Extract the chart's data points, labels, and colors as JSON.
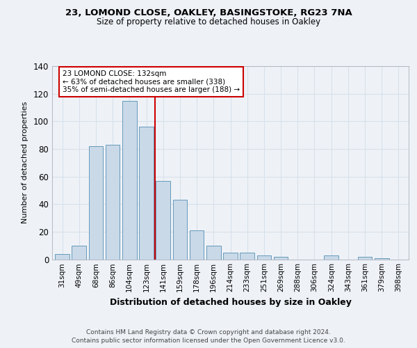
{
  "title1": "23, LOMOND CLOSE, OAKLEY, BASINGSTOKE, RG23 7NA",
  "title2": "Size of property relative to detached houses in Oakley",
  "xlabel": "Distribution of detached houses by size in Oakley",
  "ylabel": "Number of detached properties",
  "categories": [
    "31sqm",
    "49sqm",
    "68sqm",
    "86sqm",
    "104sqm",
    "123sqm",
    "141sqm",
    "159sqm",
    "178sqm",
    "196sqm",
    "214sqm",
    "233sqm",
    "251sqm",
    "269sqm",
    "288sqm",
    "306sqm",
    "324sqm",
    "343sqm",
    "361sqm",
    "379sqm",
    "398sqm"
  ],
  "values": [
    4,
    10,
    82,
    83,
    115,
    96,
    57,
    43,
    21,
    10,
    5,
    5,
    3,
    2,
    0,
    0,
    3,
    0,
    2,
    1,
    0
  ],
  "bar_color": "#c9d9e8",
  "bar_edge_color": "#6699bb",
  "grid_color": "#d8e0ea",
  "annotation_text_lines": [
    "23 LOMOND CLOSE: 132sqm",
    "← 63% of detached houses are smaller (338)",
    "35% of semi-detached houses are larger (188) →"
  ],
  "property_line_color": "#cc0000",
  "annotation_box_color": "#ffffff",
  "annotation_box_edge_color": "#cc0000",
  "footer1": "Contains HM Land Registry data © Crown copyright and database right 2024.",
  "footer2": "Contains public sector information licensed under the Open Government Licence v3.0.",
  "ylim": [
    0,
    140
  ],
  "yticks": [
    0,
    20,
    40,
    60,
    80,
    100,
    120,
    140
  ],
  "background_color": "#eef2f7"
}
